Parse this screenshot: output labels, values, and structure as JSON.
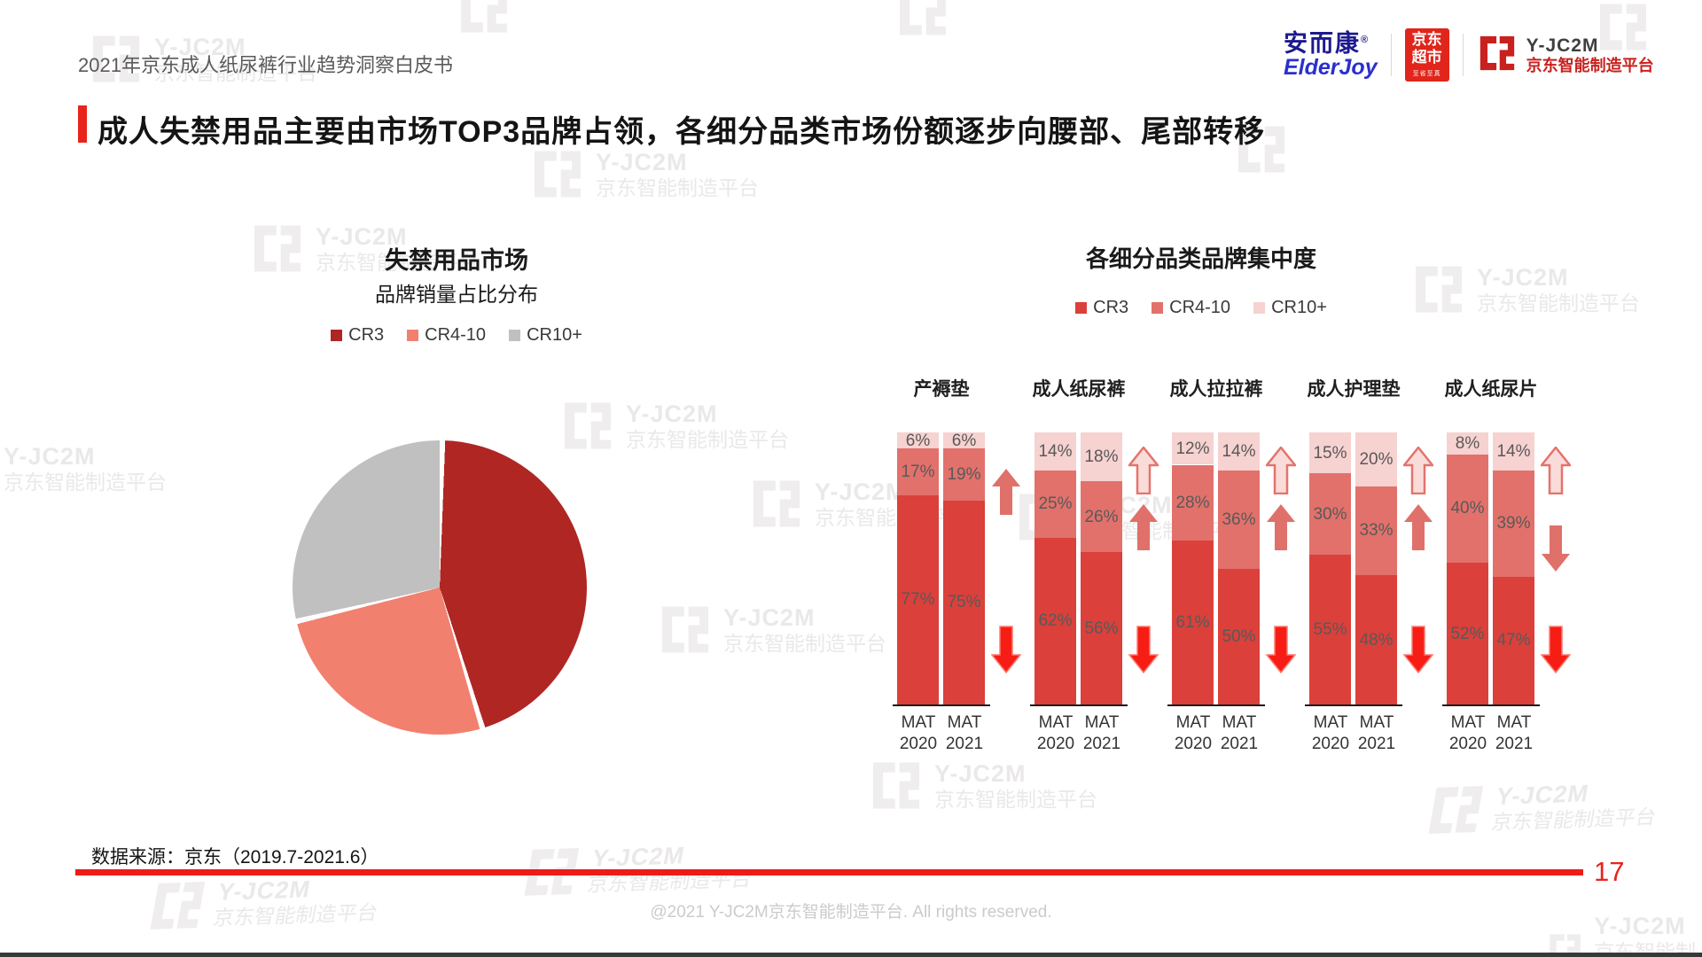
{
  "header": {
    "note": "2021年京东成人纸尿裤行业趋势洞察白皮书",
    "logos": {
      "elderjoy_cn": "安而康",
      "reg_mark": "®",
      "elderjoy_en": "ElderJoy",
      "jd_market_line1": "京东",
      "jd_market_line2": "超市",
      "jd_market_sub": "至省至真",
      "platform_name": "Y-JC2M",
      "platform_sub": "京东智能制造平台"
    }
  },
  "page": {
    "title": "成人失禁用品主要由市场TOP3品牌占领，各细分品类市场份额逐步向腰部、尾部转移"
  },
  "watermark": {
    "line1": "Y-JC2M",
    "line2": "京东智能制造平台"
  },
  "pie_section": {
    "title": "失禁用品市场",
    "subtitle": "品牌销量占比分布",
    "legend": [
      {
        "label": "CR3",
        "color": "#af2623"
      },
      {
        "label": "CR4-10",
        "color": "#f2806f"
      },
      {
        "label": "CR10+",
        "color": "#c1c0c0"
      }
    ]
  },
  "bar_section": {
    "title": "各细分品类品牌集中度",
    "legend": [
      {
        "label": "CR3",
        "color": "#db403a"
      },
      {
        "label": "CR4-10",
        "color": "#e2716b"
      },
      {
        "label": "CR10+",
        "color": "#f6d2d0"
      }
    ]
  },
  "footer": {
    "source": "数据来源：京东（2019.7-2021.6）",
    "page_number": "17",
    "copyright": "@2021 Y-JC2M京东智能制造平台. All rights reserved."
  },
  "colors": {
    "accent_red": "#e8241d",
    "rule_red": "#ee1b17",
    "arrow_up_medium": "#e0706a",
    "arrow_light_fill": "#f9dcd9",
    "arrow_light_stroke": "#e5736c",
    "arrow_down_red": "#f61d15"
  },
  "chart_data": [
    {
      "type": "pie",
      "title": "失禁用品市场 品牌销量占比分布",
      "labels": [
        "CR3",
        "CR4-10",
        "CR10+"
      ],
      "values": [
        45,
        26,
        29
      ],
      "values_estimated": true,
      "start_angle_deg": 0,
      "direction": "clockwise",
      "legend_position": "top"
    },
    {
      "type": "bar",
      "subtype": "100%-stacked-column",
      "title": "各细分品类品牌集中度",
      "unit": "%",
      "series": [
        "CR3",
        "CR4-10",
        "CR10+"
      ],
      "series_order": "bottom-to-top",
      "categories": [
        "产褥垫",
        "成人纸尿裤",
        "成人拉拉裤",
        "成人护理垫",
        "成人纸尿片"
      ],
      "x_labels": [
        "MAT 2020",
        "MAT 2021"
      ],
      "groups": [
        {
          "category": "产褥垫",
          "bars": [
            {
              "label": "MAT 2020",
              "values": [
                77,
                17,
                6
              ]
            },
            {
              "label": "MAT 2021",
              "values": [
                75,
                19,
                6
              ]
            }
          ],
          "arrows": [
            {
              "series": "CR4-10",
              "dir": "up",
              "pos": "upper"
            },
            {
              "series": "CR3",
              "dir": "down",
              "pos": "bottom"
            }
          ]
        },
        {
          "category": "成人纸尿裤",
          "bars": [
            {
              "label": "MAT 2020",
              "values": [
                62,
                25,
                14
              ]
            },
            {
              "label": "MAT 2021",
              "values": [
                56,
                26,
                18
              ]
            }
          ],
          "arrows": [
            {
              "series": "CR10+",
              "dir": "up",
              "pos": "top"
            },
            {
              "series": "CR4-10",
              "dir": "up",
              "pos": "mid"
            },
            {
              "series": "CR3",
              "dir": "down",
              "pos": "bottom"
            }
          ]
        },
        {
          "category": "成人拉拉裤",
          "bars": [
            {
              "label": "MAT 2020",
              "values": [
                61,
                28,
                12
              ]
            },
            {
              "label": "MAT 2021",
              "values": [
                50,
                36,
                14
              ]
            }
          ],
          "arrows": [
            {
              "series": "CR10+",
              "dir": "up",
              "pos": "top"
            },
            {
              "series": "CR4-10",
              "dir": "up",
              "pos": "mid"
            },
            {
              "series": "CR3",
              "dir": "down",
              "pos": "bottom"
            }
          ]
        },
        {
          "category": "成人护理垫",
          "bars": [
            {
              "label": "MAT 2020",
              "values": [
                55,
                30,
                15
              ]
            },
            {
              "label": "MAT 2021",
              "values": [
                48,
                33,
                20
              ]
            }
          ],
          "arrows": [
            {
              "series": "CR10+",
              "dir": "up",
              "pos": "top"
            },
            {
              "series": "CR4-10",
              "dir": "up",
              "pos": "mid"
            },
            {
              "series": "CR3",
              "dir": "down",
              "pos": "bottom"
            }
          ]
        },
        {
          "category": "成人纸尿片",
          "bars": [
            {
              "label": "MAT 2020",
              "values": [
                52,
                40,
                8
              ]
            },
            {
              "label": "MAT 2021",
              "values": [
                47,
                39,
                14
              ]
            }
          ],
          "arrows": [
            {
              "series": "CR10+",
              "dir": "up",
              "pos": "top"
            },
            {
              "series": "CR4-10",
              "dir": "down",
              "pos": "lower"
            },
            {
              "series": "CR3",
              "dir": "down",
              "pos": "bottom"
            }
          ]
        }
      ]
    }
  ]
}
